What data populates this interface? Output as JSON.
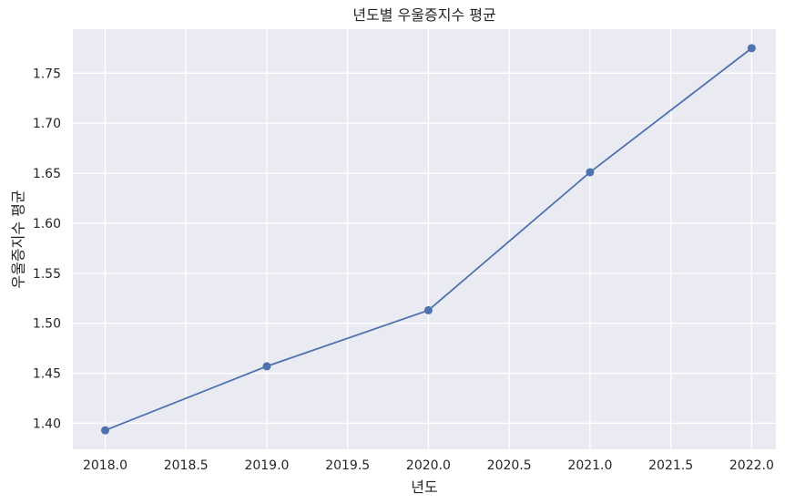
{
  "chart_data": {
    "type": "line",
    "title": "년도별 우울증지수 평균",
    "xlabel": "년도",
    "ylabel": "우울증지수 평균",
    "xlim": [
      2017.8,
      2022.15
    ],
    "ylim": [
      1.374,
      1.794
    ],
    "xticks": [
      2018.0,
      2018.5,
      2019.0,
      2019.5,
      2020.0,
      2020.5,
      2021.0,
      2021.5,
      2022.0
    ],
    "yticks": [
      1.4,
      1.45,
      1.5,
      1.55,
      1.6,
      1.65,
      1.7,
      1.75
    ],
    "xtick_labels": [
      "2018.0",
      "2018.5",
      "2019.0",
      "2019.5",
      "2020.0",
      "2020.5",
      "2021.0",
      "2021.5",
      "2022.0"
    ],
    "ytick_labels": [
      "1.40",
      "1.45",
      "1.50",
      "1.55",
      "1.60",
      "1.65",
      "1.70",
      "1.75"
    ],
    "grid": true,
    "series": [
      {
        "x": [
          2018,
          2019,
          2020,
          2021,
          2022
        ],
        "y": [
          1.393,
          1.457,
          1.513,
          1.651,
          1.775
        ],
        "color": "#4c72b0",
        "marker": "circle"
      }
    ],
    "background": "#eaeaf2"
  }
}
